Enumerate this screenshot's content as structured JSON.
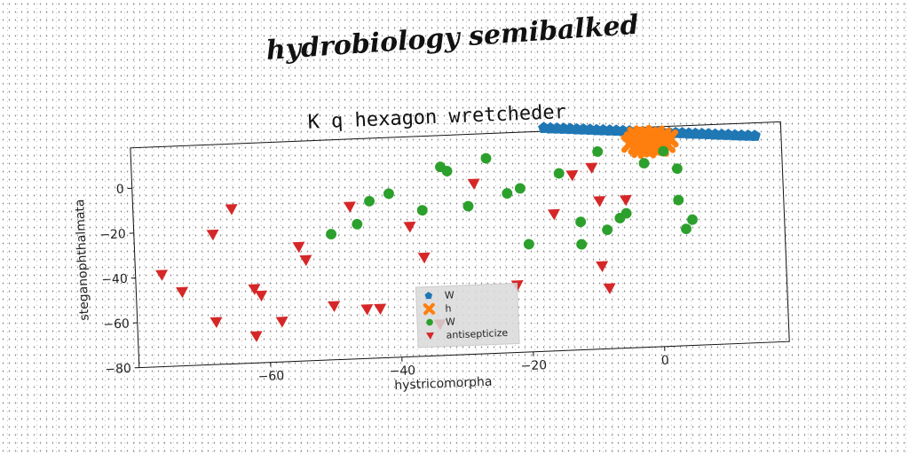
{
  "page": {
    "title": "hydrobiology semibalked"
  },
  "chart_data": {
    "type": "scatter",
    "title": "K q hexagon wretcheder",
    "xlabel": "hystricomorpha",
    "ylabel": "steganophthalmata",
    "xlim": [
      -80,
      19
    ],
    "ylim": [
      -80,
      18
    ],
    "xticks": [
      -60,
      -40,
      -20,
      0
    ],
    "yticks": [
      0,
      -20,
      -40,
      -60,
      -80
    ],
    "grid": false,
    "legend_position": "lower-center",
    "series": [
      {
        "name": "W",
        "marker": "pentagon",
        "color": "#1f77b4",
        "x": [
          -17,
          -16,
          -15,
          -14,
          -13,
          -12,
          -11,
          -10,
          -9,
          -8,
          -7,
          -6,
          -5,
          -4,
          -3,
          -2,
          -1,
          0,
          1,
          2,
          3,
          4,
          5,
          6,
          7,
          8,
          9,
          10,
          11,
          12,
          13,
          14,
          15
        ],
        "y": [
          19.5,
          19.2,
          19.0,
          18.8,
          18.6,
          18.3,
          18.1,
          17.9,
          17.6,
          17.4,
          17.2,
          17.0,
          16.7,
          16.5,
          16.3,
          16.0,
          15.8,
          15.6,
          15.4,
          15.1,
          14.9,
          14.7,
          14.4,
          14.2,
          14.0,
          13.8,
          13.5,
          13.3,
          13.1,
          12.8,
          12.6,
          12.4,
          12.2
        ]
      },
      {
        "name": "h",
        "marker": "x",
        "color": "#ff7f0e",
        "x": [
          -4,
          -3.5,
          -3,
          -2.5,
          -2,
          -1.5,
          -1,
          -0.5,
          0,
          0.5,
          1,
          1.5,
          2,
          -3,
          -2,
          -1,
          0,
          1,
          -2.5,
          -1.5,
          -0.5,
          0.5
        ],
        "y": [
          11,
          12.5,
          10,
          13.5,
          11.5,
          9.5,
          12,
          10.5,
          13,
          9,
          11.5,
          10,
          12.5,
          14.5,
          15,
          14,
          14.5,
          13.5,
          8.5,
          8,
          9,
          8.5
        ]
      },
      {
        "name": "W",
        "marker": "circle",
        "color": "#2ca02c",
        "x": [
          -50,
          -46,
          -44,
          -41,
          -36,
          -33,
          -32,
          -29,
          -26,
          -23,
          -21,
          -20,
          -15,
          -12,
          -12,
          -9,
          -8,
          -6,
          -5,
          -2,
          1,
          3,
          3,
          4,
          5
        ],
        "y": [
          -24,
          -20,
          -10,
          -7,
          -15,
          4,
          2,
          -14,
          7,
          -9,
          -7,
          -32,
          -1,
          -23,
          -33,
          8,
          -27,
          -22,
          -20,
          2,
          7,
          -1,
          -15,
          -28,
          -24
        ]
      },
      {
        "name": "antisepticize",
        "marker": "triangle-down",
        "color": "#d62728",
        "x": [
          -76,
          -73,
          -68,
          -68,
          -65,
          -62,
          -62,
          -61,
          -58,
          -55,
          -54,
          -50,
          -47,
          -45,
          -43,
          -38,
          -36,
          -34,
          -28,
          -22,
          -16,
          -13,
          -10,
          -9,
          -9,
          -8,
          -5
        ],
        "y": [
          -39,
          -47,
          -61,
          -22,
          -11,
          -47,
          -68,
          -50,
          -62,
          -29,
          -35,
          -56,
          -12,
          -58,
          -58,
          -22,
          -36,
          -66,
          -4,
          -50,
          -19,
          -2,
          1,
          -14,
          -43,
          -53,
          -14
        ]
      }
    ]
  }
}
